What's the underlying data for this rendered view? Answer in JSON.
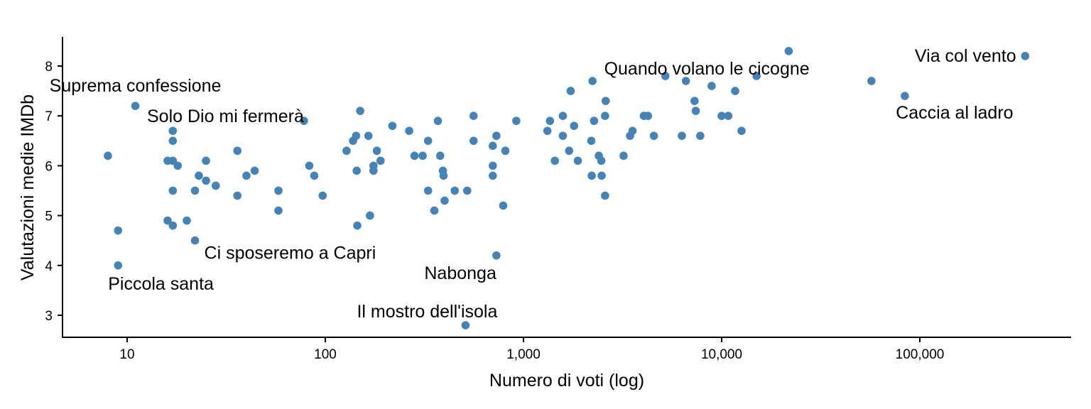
{
  "chart_data": {
    "type": "scatter",
    "title": "",
    "xlabel": "Numero di voti (log)",
    "ylabel": "Valutazioni medie IMDb",
    "x_scale": "log",
    "xlim": [
      5,
      600000
    ],
    "ylim": [
      2.55,
      8.6
    ],
    "x_ticks": [
      10,
      100,
      1000,
      10000,
      100000
    ],
    "x_tick_labels": [
      "10",
      "100",
      "1,000",
      "10,000",
      "100,000"
    ],
    "y_ticks": [
      3,
      4,
      5,
      6,
      7,
      8
    ],
    "y_tick_labels": [
      "3",
      "4",
      "5",
      "6",
      "7",
      "8"
    ],
    "grid": false,
    "point_color": "#4682B4",
    "points": [
      {
        "x": 8,
        "y": 6.2
      },
      {
        "x": 9,
        "y": 4.7
      },
      {
        "x": 9,
        "y": 4.0
      },
      {
        "x": 11,
        "y": 7.2
      },
      {
        "x": 16,
        "y": 6.1
      },
      {
        "x": 16,
        "y": 4.9
      },
      {
        "x": 17,
        "y": 6.7
      },
      {
        "x": 17,
        "y": 6.5
      },
      {
        "x": 17,
        "y": 6.1
      },
      {
        "x": 17,
        "y": 5.5
      },
      {
        "x": 17,
        "y": 4.8
      },
      {
        "x": 18,
        "y": 6.0
      },
      {
        "x": 20,
        "y": 4.9
      },
      {
        "x": 22,
        "y": 5.5
      },
      {
        "x": 22,
        "y": 4.5
      },
      {
        "x": 23,
        "y": 5.8
      },
      {
        "x": 25,
        "y": 6.1
      },
      {
        "x": 25,
        "y": 5.7
      },
      {
        "x": 28,
        "y": 5.6
      },
      {
        "x": 36,
        "y": 6.3
      },
      {
        "x": 36,
        "y": 5.4
      },
      {
        "x": 40,
        "y": 5.8
      },
      {
        "x": 44,
        "y": 5.9
      },
      {
        "x": 58,
        "y": 5.5
      },
      {
        "x": 58,
        "y": 5.1
      },
      {
        "x": 78,
        "y": 6.9
      },
      {
        "x": 83,
        "y": 6.0
      },
      {
        "x": 88,
        "y": 5.8
      },
      {
        "x": 97,
        "y": 5.4
      },
      {
        "x": 128,
        "y": 6.3
      },
      {
        "x": 138,
        "y": 6.5
      },
      {
        "x": 143,
        "y": 6.6
      },
      {
        "x": 144,
        "y": 5.9
      },
      {
        "x": 145,
        "y": 4.8
      },
      {
        "x": 150,
        "y": 7.1
      },
      {
        "x": 165,
        "y": 6.6
      },
      {
        "x": 168,
        "y": 5.0
      },
      {
        "x": 175,
        "y": 6.0
      },
      {
        "x": 175,
        "y": 5.9
      },
      {
        "x": 182,
        "y": 6.3
      },
      {
        "x": 190,
        "y": 6.1
      },
      {
        "x": 218,
        "y": 6.8
      },
      {
        "x": 265,
        "y": 6.7
      },
      {
        "x": 282,
        "y": 6.2
      },
      {
        "x": 310,
        "y": 6.2
      },
      {
        "x": 330,
        "y": 6.5
      },
      {
        "x": 330,
        "y": 5.5
      },
      {
        "x": 355,
        "y": 5.1
      },
      {
        "x": 370,
        "y": 6.9
      },
      {
        "x": 380,
        "y": 6.2
      },
      {
        "x": 392,
        "y": 5.9
      },
      {
        "x": 395,
        "y": 5.8
      },
      {
        "x": 400,
        "y": 5.3
      },
      {
        "x": 450,
        "y": 5.5
      },
      {
        "x": 510,
        "y": 2.8
      },
      {
        "x": 520,
        "y": 5.5
      },
      {
        "x": 560,
        "y": 7.0
      },
      {
        "x": 560,
        "y": 6.5
      },
      {
        "x": 700,
        "y": 6.4
      },
      {
        "x": 700,
        "y": 6.0
      },
      {
        "x": 700,
        "y": 5.8
      },
      {
        "x": 730,
        "y": 6.6
      },
      {
        "x": 730,
        "y": 4.2
      },
      {
        "x": 790,
        "y": 5.2
      },
      {
        "x": 810,
        "y": 6.3
      },
      {
        "x": 920,
        "y": 6.9
      },
      {
        "x": 1320,
        "y": 6.7
      },
      {
        "x": 1360,
        "y": 6.9
      },
      {
        "x": 1440,
        "y": 6.1
      },
      {
        "x": 1580,
        "y": 7.0
      },
      {
        "x": 1580,
        "y": 6.6
      },
      {
        "x": 1700,
        "y": 6.3
      },
      {
        "x": 1730,
        "y": 7.5
      },
      {
        "x": 1800,
        "y": 6.8
      },
      {
        "x": 1880,
        "y": 6.1
      },
      {
        "x": 2200,
        "y": 6.5
      },
      {
        "x": 2210,
        "y": 5.8
      },
      {
        "x": 2230,
        "y": 7.7
      },
      {
        "x": 2270,
        "y": 6.9
      },
      {
        "x": 2400,
        "y": 6.2
      },
      {
        "x": 2470,
        "y": 6.1
      },
      {
        "x": 2480,
        "y": 5.8
      },
      {
        "x": 2580,
        "y": 7.0
      },
      {
        "x": 2580,
        "y": 5.4
      },
      {
        "x": 2600,
        "y": 7.3
      },
      {
        "x": 3200,
        "y": 6.2
      },
      {
        "x": 3450,
        "y": 6.6
      },
      {
        "x": 3550,
        "y": 6.7
      },
      {
        "x": 4050,
        "y": 7.0
      },
      {
        "x": 4250,
        "y": 7.0
      },
      {
        "x": 4550,
        "y": 6.6
      },
      {
        "x": 5200,
        "y": 7.8
      },
      {
        "x": 6300,
        "y": 6.6
      },
      {
        "x": 6600,
        "y": 7.7
      },
      {
        "x": 7300,
        "y": 7.3
      },
      {
        "x": 7400,
        "y": 7.1
      },
      {
        "x": 7800,
        "y": 6.6
      },
      {
        "x": 8900,
        "y": 7.6
      },
      {
        "x": 10000,
        "y": 7.0
      },
      {
        "x": 10800,
        "y": 7.0
      },
      {
        "x": 11700,
        "y": 7.5
      },
      {
        "x": 12600,
        "y": 6.7
      },
      {
        "x": 15000,
        "y": 7.8
      },
      {
        "x": 21800,
        "y": 8.3
      },
      {
        "x": 57000,
        "y": 7.7
      },
      {
        "x": 84000,
        "y": 7.4
      },
      {
        "x": 340000,
        "y": 8.2
      }
    ],
    "annotations": [
      {
        "text": "Suprema confessione",
        "x": 11,
        "y": 7.2,
        "dx": 0,
        "dy": -20,
        "anchor": "middle"
      },
      {
        "text": "Solo Dio mi fermerà",
        "x": 78,
        "y": 6.9,
        "dx": 0,
        "dy": 2,
        "anchor": "end"
      },
      {
        "text": "Piccola santa",
        "x": 9,
        "y": 4.0,
        "dx": -14,
        "dy": 34,
        "anchor": "start"
      },
      {
        "text": "Ci sposeremo a Capri",
        "x": 22,
        "y": 4.5,
        "dx": 13,
        "dy": 26,
        "anchor": "start"
      },
      {
        "text": "Nabonga",
        "x": 730,
        "y": 4.2,
        "dx": 0,
        "dy": 33,
        "anchor": "end"
      },
      {
        "text": "Il mostro dell'isola",
        "x": 510,
        "y": 2.8,
        "dx": -54,
        "dy": -11,
        "anchor": "middle"
      },
      {
        "text": "Quando volano le cicogne",
        "x": 15000,
        "y": 7.8,
        "dx": -70,
        "dy": -2,
        "anchor": "middle"
      },
      {
        "text": "Via col vento",
        "x": 340000,
        "y": 8.2,
        "dx": -84,
        "dy": 8,
        "anchor": "middle"
      },
      {
        "text": "Caccia al ladro",
        "x": 84000,
        "y": 7.4,
        "dx": 70,
        "dy": 32,
        "anchor": "middle"
      }
    ]
  }
}
